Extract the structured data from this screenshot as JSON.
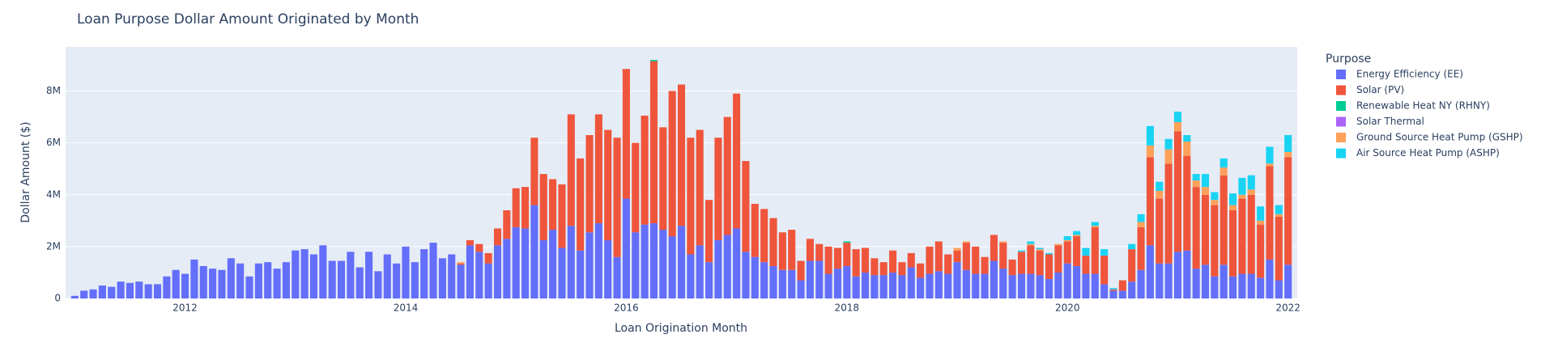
{
  "chart_data": {
    "type": "stacked_bar",
    "title": "Loan Purpose Dollar Amount Originated by Month",
    "x_label": "Loan Origination Month",
    "y_label": "Dollar Amount ($)",
    "legend_title": "Purpose",
    "legend_position": "right",
    "grid": true,
    "x": [
      "2011-01",
      "2011-02",
      "2011-03",
      "2011-04",
      "2011-05",
      "2011-06",
      "2011-07",
      "2011-08",
      "2011-09",
      "2011-10",
      "2011-11",
      "2011-12",
      "2012-01",
      "2012-02",
      "2012-03",
      "2012-04",
      "2012-05",
      "2012-06",
      "2012-07",
      "2012-08",
      "2012-09",
      "2012-10",
      "2012-11",
      "2012-12",
      "2013-01",
      "2013-02",
      "2013-03",
      "2013-04",
      "2013-05",
      "2013-06",
      "2013-07",
      "2013-08",
      "2013-09",
      "2013-10",
      "2013-11",
      "2013-12",
      "2014-01",
      "2014-02",
      "2014-03",
      "2014-04",
      "2014-05",
      "2014-06",
      "2014-07",
      "2014-08",
      "2014-09",
      "2014-10",
      "2014-11",
      "2014-12",
      "2015-01",
      "2015-02",
      "2015-03",
      "2015-04",
      "2015-05",
      "2015-06",
      "2015-07",
      "2015-08",
      "2015-09",
      "2015-10",
      "2015-11",
      "2015-12",
      "2016-01",
      "2016-02",
      "2016-03",
      "2016-04",
      "2016-05",
      "2016-06",
      "2016-07",
      "2016-08",
      "2016-09",
      "2016-10",
      "2016-11",
      "2016-12",
      "2017-01",
      "2017-02",
      "2017-03",
      "2017-04",
      "2017-05",
      "2017-06",
      "2017-07",
      "2017-08",
      "2017-09",
      "2017-10",
      "2017-11",
      "2017-12",
      "2018-01",
      "2018-02",
      "2018-03",
      "2018-04",
      "2018-05",
      "2018-06",
      "2018-07",
      "2018-08",
      "2018-09",
      "2018-10",
      "2018-11",
      "2018-12",
      "2019-01",
      "2019-02",
      "2019-03",
      "2019-04",
      "2019-05",
      "2019-06",
      "2019-07",
      "2019-08",
      "2019-09",
      "2019-10",
      "2019-11",
      "2019-12",
      "2020-01",
      "2020-02",
      "2020-03",
      "2020-04",
      "2020-05",
      "2020-06",
      "2020-07",
      "2020-08",
      "2020-09",
      "2020-10",
      "2020-11",
      "2020-12",
      "2021-01",
      "2021-02",
      "2021-03",
      "2021-04",
      "2021-05",
      "2021-06",
      "2021-07",
      "2021-08",
      "2021-09",
      "2021-10",
      "2021-11",
      "2021-12",
      "2022-01"
    ],
    "xlim": [
      "2010-12",
      "2022-02"
    ],
    "xticks": [
      {
        "value": "2012-01",
        "label": "2012"
      },
      {
        "value": "2014-01",
        "label": "2014"
      },
      {
        "value": "2016-01",
        "label": "2016"
      },
      {
        "value": "2018-01",
        "label": "2018"
      },
      {
        "value": "2020-01",
        "label": "2020"
      },
      {
        "value": "2022-01",
        "label": "2022"
      }
    ],
    "ylim": [
      0,
      9700000
    ],
    "yticks": [
      0,
      {
        "value": 2000000,
        "label": "2M"
      },
      {
        "value": 4000000,
        "label": "4M"
      },
      {
        "value": 6000000,
        "label": "6M"
      },
      {
        "value": 8000000,
        "label": "8M"
      }
    ],
    "series": [
      {
        "name": "Energy Efficiency (EE)",
        "color": "#636efa",
        "values": [
          100000,
          300000,
          350000,
          500000,
          450000,
          650000,
          600000,
          650000,
          550000,
          550000,
          850000,
          1100000,
          950000,
          1500000,
          1250000,
          1150000,
          1100000,
          1550000,
          1350000,
          850000,
          1350000,
          1400000,
          1150000,
          1400000,
          1850000,
          1900000,
          1700000,
          2050000,
          1450000,
          1450000,
          1800000,
          1200000,
          1800000,
          1050000,
          1700000,
          1350000,
          2000000,
          1400000,
          1900000,
          2150000,
          1550000,
          1700000,
          1300000,
          2050000,
          1800000,
          1350000,
          2050000,
          2300000,
          2750000,
          2700000,
          3600000,
          2250000,
          2650000,
          1950000,
          2800000,
          1850000,
          2550000,
          2900000,
          2250000,
          1600000,
          3850000,
          2550000,
          2850000,
          2900000,
          2650000,
          2400000,
          2800000,
          1700000,
          2050000,
          1400000,
          2250000,
          2450000,
          2700000,
          1800000,
          1600000,
          1400000,
          1250000,
          1100000,
          1100000,
          700000,
          1450000,
          1450000,
          950000,
          1150000,
          1250000,
          850000,
          1000000,
          900000,
          900000,
          1000000,
          900000,
          1200000,
          800000,
          950000,
          1050000,
          950000,
          1400000,
          1100000,
          950000,
          950000,
          1450000,
          1150000,
          900000,
          950000,
          950000,
          900000,
          750000,
          1000000,
          1350000,
          1250000,
          950000,
          950000,
          550000,
          300000,
          300000,
          650000,
          1100000,
          2050000,
          1350000,
          1350000,
          1800000,
          1850000,
          1150000,
          1300000,
          850000,
          1300000,
          850000,
          950000,
          950000,
          800000,
          1500000,
          700000,
          1300000
        ]
      },
      {
        "name": "Solar (PV)",
        "color": "#EF553B",
        "values": [
          0,
          0,
          0,
          0,
          0,
          0,
          0,
          0,
          0,
          0,
          0,
          0,
          0,
          0,
          0,
          0,
          0,
          0,
          0,
          0,
          0,
          0,
          0,
          0,
          0,
          0,
          0,
          0,
          0,
          0,
          0,
          0,
          0,
          0,
          0,
          0,
          0,
          0,
          0,
          0,
          0,
          0,
          50000,
          200000,
          300000,
          400000,
          650000,
          1100000,
          1500000,
          1600000,
          2600000,
          2550000,
          1950000,
          2450000,
          4300000,
          3550000,
          3750000,
          4200000,
          4250000,
          4600000,
          5000000,
          3450000,
          4200000,
          6250000,
          3950000,
          5600000,
          5450000,
          4500000,
          4450000,
          2400000,
          3950000,
          4550000,
          5200000,
          3500000,
          2050000,
          2050000,
          1850000,
          1450000,
          1550000,
          750000,
          850000,
          650000,
          1050000,
          800000,
          900000,
          1050000,
          950000,
          650000,
          500000,
          850000,
          500000,
          550000,
          550000,
          1050000,
          1150000,
          750000,
          450000,
          1050000,
          1050000,
          650000,
          1000000,
          1000000,
          600000,
          850000,
          1100000,
          950000,
          950000,
          1050000,
          850000,
          1150000,
          700000,
          1800000,
          1100000,
          50000,
          400000,
          1250000,
          1650000,
          3400000,
          2500000,
          3850000,
          4650000,
          3650000,
          3150000,
          2700000,
          2750000,
          3450000,
          2550000,
          2900000,
          3050000,
          2050000,
          3600000,
          2450000,
          4150000
        ]
      },
      {
        "name": "Renewable Heat NY (RHNY)",
        "color": "#00cc96",
        "values": [
          0,
          0,
          0,
          0,
          0,
          0,
          0,
          0,
          0,
          0,
          0,
          0,
          0,
          0,
          0,
          0,
          0,
          0,
          0,
          0,
          0,
          0,
          0,
          0,
          0,
          0,
          0,
          0,
          0,
          0,
          0,
          0,
          0,
          0,
          0,
          0,
          0,
          0,
          0,
          0,
          0,
          0,
          0,
          0,
          0,
          0,
          0,
          0,
          0,
          0,
          0,
          0,
          0,
          0,
          0,
          0,
          0,
          0,
          0,
          0,
          0,
          0,
          0,
          50000,
          0,
          0,
          0,
          0,
          0,
          0,
          0,
          0,
          0,
          0,
          0,
          0,
          0,
          0,
          0,
          0,
          0,
          0,
          0,
          0,
          50000,
          0,
          0,
          0,
          0,
          0,
          0,
          0,
          0,
          0,
          0,
          0,
          0,
          0,
          0,
          0,
          0,
          0,
          0,
          0,
          0,
          0,
          0,
          0,
          0,
          0,
          0,
          0,
          0,
          0,
          0,
          0,
          0,
          0,
          0,
          0,
          0,
          0,
          0,
          0,
          0,
          0,
          0,
          0,
          0,
          0,
          0,
          0,
          0
        ]
      },
      {
        "name": "Solar Thermal",
        "color": "#ab63fa",
        "values": [
          0,
          0,
          0,
          0,
          0,
          0,
          0,
          0,
          0,
          0,
          0,
          0,
          0,
          0,
          0,
          0,
          0,
          0,
          0,
          0,
          0,
          0,
          0,
          0,
          0,
          0,
          0,
          0,
          0,
          0,
          0,
          0,
          0,
          0,
          0,
          0,
          0,
          0,
          0,
          0,
          0,
          0,
          0,
          0,
          0,
          0,
          0,
          0,
          0,
          0,
          0,
          0,
          0,
          0,
          0,
          0,
          0,
          0,
          0,
          0,
          0,
          0,
          0,
          0,
          0,
          0,
          0,
          0,
          0,
          0,
          0,
          0,
          0,
          0,
          0,
          0,
          0,
          0,
          0,
          0,
          0,
          0,
          0,
          0,
          0,
          0,
          0,
          0,
          0,
          0,
          0,
          0,
          0,
          0,
          0,
          0,
          0,
          0,
          0,
          0,
          0,
          0,
          0,
          0,
          0,
          0,
          0,
          0,
          0,
          0,
          0,
          0,
          0,
          0,
          0,
          0,
          0,
          0,
          0,
          0,
          0,
          0,
          0,
          0,
          0,
          0,
          0,
          0,
          0,
          0,
          0,
          0,
          0
        ]
      },
      {
        "name": "Ground Source Heat Pump (GSHP)",
        "color": "#FFA15A",
        "values": [
          0,
          0,
          0,
          0,
          0,
          0,
          0,
          0,
          0,
          0,
          0,
          0,
          0,
          0,
          0,
          0,
          0,
          0,
          0,
          0,
          0,
          0,
          0,
          0,
          0,
          0,
          0,
          0,
          0,
          0,
          0,
          0,
          0,
          0,
          0,
          0,
          0,
          0,
          0,
          0,
          0,
          0,
          50000,
          0,
          0,
          0,
          0,
          0,
          0,
          0,
          0,
          0,
          0,
          0,
          0,
          0,
          0,
          0,
          0,
          0,
          0,
          0,
          0,
          0,
          0,
          0,
          0,
          0,
          0,
          0,
          0,
          0,
          0,
          0,
          0,
          0,
          0,
          0,
          0,
          0,
          0,
          0,
          0,
          0,
          0,
          0,
          0,
          0,
          0,
          0,
          0,
          0,
          0,
          0,
          0,
          0,
          100000,
          50000,
          0,
          0,
          0,
          50000,
          0,
          0,
          50000,
          50000,
          0,
          50000,
          50000,
          50000,
          0,
          50000,
          0,
          0,
          0,
          0,
          200000,
          450000,
          300000,
          550000,
          350000,
          550000,
          250000,
          300000,
          200000,
          300000,
          200000,
          150000,
          200000,
          150000,
          100000,
          100000,
          200000
        ]
      },
      {
        "name": "Air Source Heat Pump (ASHP)",
        "color": "#19d3f3",
        "values": [
          0,
          0,
          0,
          0,
          0,
          0,
          0,
          0,
          0,
          0,
          0,
          0,
          0,
          0,
          0,
          0,
          0,
          0,
          0,
          0,
          0,
          0,
          0,
          0,
          0,
          0,
          0,
          0,
          0,
          0,
          0,
          0,
          0,
          0,
          0,
          0,
          0,
          0,
          0,
          0,
          0,
          0,
          0,
          0,
          0,
          0,
          0,
          0,
          0,
          0,
          0,
          0,
          0,
          0,
          0,
          0,
          0,
          0,
          0,
          0,
          0,
          0,
          0,
          0,
          0,
          0,
          0,
          0,
          0,
          0,
          0,
          0,
          0,
          0,
          0,
          0,
          0,
          0,
          0,
          0,
          0,
          0,
          0,
          0,
          0,
          0,
          0,
          0,
          0,
          0,
          0,
          0,
          0,
          0,
          0,
          0,
          0,
          0,
          0,
          0,
          0,
          0,
          0,
          50000,
          100000,
          50000,
          50000,
          0,
          150000,
          150000,
          300000,
          150000,
          250000,
          50000,
          0,
          200000,
          300000,
          750000,
          350000,
          400000,
          400000,
          250000,
          250000,
          500000,
          300000,
          350000,
          450000,
          650000,
          550000,
          550000,
          650000,
          350000,
          650000
        ]
      }
    ]
  }
}
